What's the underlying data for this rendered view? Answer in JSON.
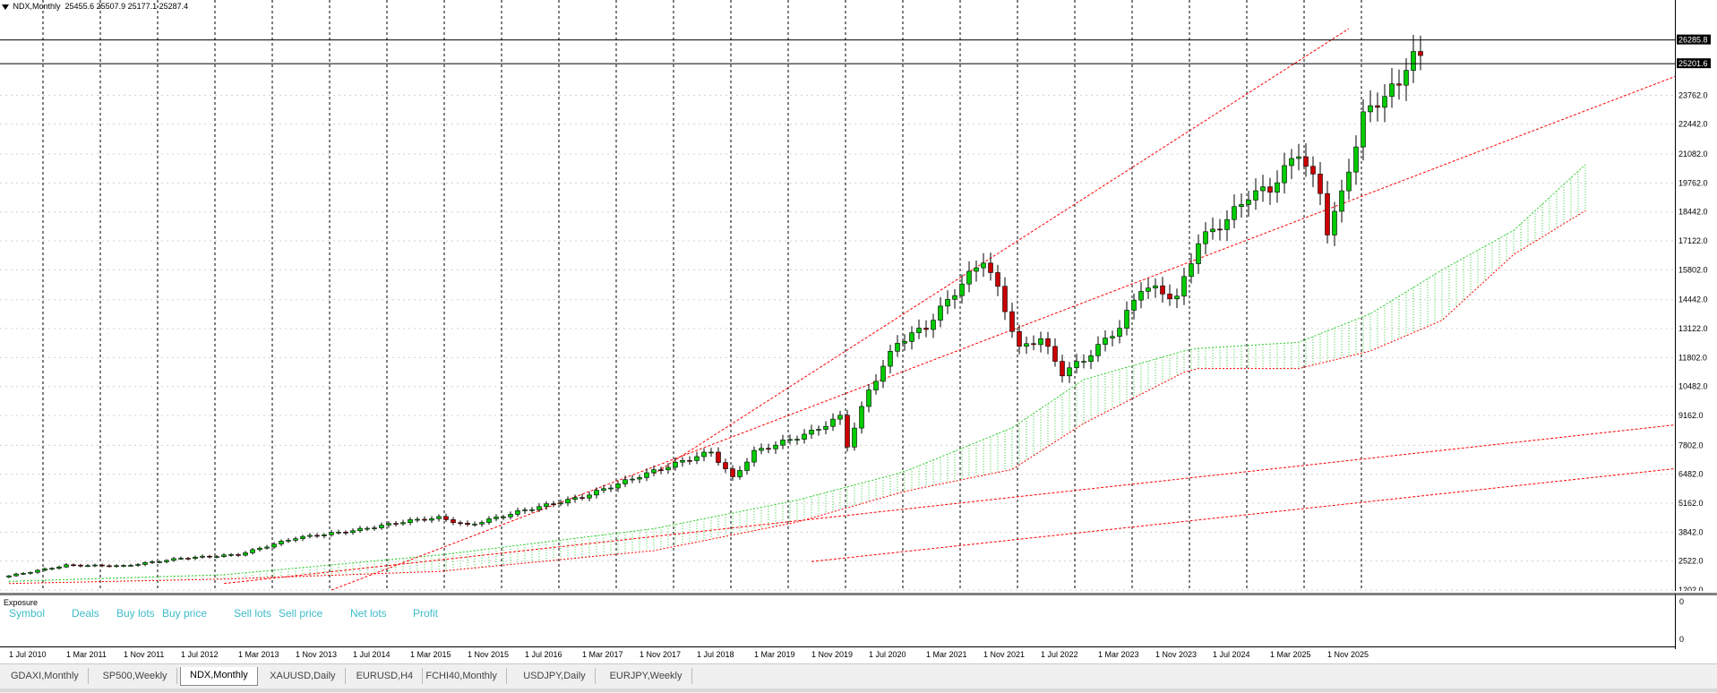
{
  "header": {
    "symbol": "NDX,Monthly",
    "ohlc": "25455.6 25507.9 25177.1 25287.4"
  },
  "price_labels": {
    "high_marker": "26285.8",
    "current_marker": "25201.6"
  },
  "chart_data": {
    "type": "candlestick",
    "title": "",
    "y_ticks": [
      1202.0,
      2522.0,
      3842.0,
      5162.0,
      6482.0,
      7802.0,
      9162.0,
      10482.0,
      11802.0,
      13122.0,
      14442.0,
      15802.0,
      17122.0,
      18442.0,
      19762.0,
      21082.0,
      22442.0,
      23762.0
    ],
    "y_tick_labels": [
      "1202.0",
      "2522.0",
      "3842.0",
      "5162.0",
      "6482.0",
      "7802.0",
      "9162.0",
      "10482.0",
      "11802.0",
      "13122.0",
      "14442.0",
      "15802.0",
      "17122.0",
      "18442.0",
      "19762.0",
      "21082.0",
      "22442.0",
      "23762.0"
    ],
    "ylim": [
      1202,
      26800
    ],
    "x_tick_labels": [
      "1 Jul 2010",
      "1 Mar 2011",
      "1 Nov 2011",
      "1 Jul 2012",
      "1 Mar 2013",
      "1 Nov 2013",
      "1 Jul 2014",
      "1 Mar 2015",
      "1 Nov 2015",
      "1 Jul 2016",
      "1 Mar 2017",
      "1 Nov 2017",
      "1 Jul 2018",
      "1 Mar 2019",
      "1 Nov 2019",
      "1 Jul 2020",
      "1 Mar 2021",
      "1 Nov 2021",
      "1 Jul 2022",
      "1 Mar 2023",
      "1 Nov 2023",
      "1 Jul 2024",
      "1 Mar 2025",
      "1 Nov 2025"
    ],
    "horizontal_levels": [
      26285.8,
      25201.6
    ],
    "close_anchors": [
      {
        "month": 0,
        "close": 1850
      },
      {
        "month": 8,
        "close": 2330
      },
      {
        "month": 16,
        "close": 2300
      },
      {
        "month": 24,
        "close": 2650
      },
      {
        "month": 32,
        "close": 2820
      },
      {
        "month": 40,
        "close": 3580
      },
      {
        "month": 48,
        "close": 3910
      },
      {
        "month": 56,
        "close": 4370
      },
      {
        "month": 60,
        "close": 4500
      },
      {
        "month": 64,
        "close": 4150
      },
      {
        "month": 72,
        "close": 4850
      },
      {
        "month": 80,
        "close": 5450
      },
      {
        "month": 88,
        "close": 6400
      },
      {
        "month": 96,
        "close": 7300
      },
      {
        "month": 98,
        "close": 7500
      },
      {
        "month": 101,
        "close": 6300
      },
      {
        "month": 104,
        "close": 7500
      },
      {
        "month": 112,
        "close": 8400
      },
      {
        "month": 116,
        "close": 9100
      },
      {
        "month": 117,
        "close": 7800
      },
      {
        "month": 120,
        "close": 10300
      },
      {
        "month": 124,
        "close": 12500
      },
      {
        "month": 128,
        "close": 13200
      },
      {
        "month": 132,
        "close": 14800
      },
      {
        "month": 136,
        "close": 16300
      },
      {
        "month": 138,
        "close": 14900
      },
      {
        "month": 141,
        "close": 12200
      },
      {
        "month": 144,
        "close": 12700
      },
      {
        "month": 147,
        "close": 11100
      },
      {
        "month": 150,
        "close": 11700
      },
      {
        "month": 152,
        "close": 12300
      },
      {
        "month": 155,
        "close": 13200
      },
      {
        "month": 158,
        "close": 15000
      },
      {
        "month": 160,
        "close": 14900
      },
      {
        "month": 163,
        "close": 14500
      },
      {
        "month": 166,
        "close": 17100
      },
      {
        "month": 170,
        "close": 18100
      },
      {
        "month": 173,
        "close": 19200
      },
      {
        "month": 176,
        "close": 19500
      },
      {
        "month": 180,
        "close": 21200
      },
      {
        "month": 183,
        "close": 19300
      },
      {
        "month": 184,
        "close": 17600
      },
      {
        "month": 186,
        "close": 19200
      },
      {
        "month": 189,
        "close": 22800
      },
      {
        "month": 192,
        "close": 23800
      },
      {
        "month": 194,
        "close": 24200
      },
      {
        "month": 195,
        "close": 25200
      },
      {
        "month": 196,
        "close": 25700
      },
      {
        "month": 197,
        "close": 25287
      }
    ],
    "cloud_top_anchors": [
      {
        "month": 0,
        "value": 1600
      },
      {
        "month": 30,
        "value": 1900
      },
      {
        "month": 60,
        "value": 2800
      },
      {
        "month": 90,
        "value": 4000
      },
      {
        "month": 110,
        "value": 5300
      },
      {
        "month": 125,
        "value": 6600
      },
      {
        "month": 140,
        "value": 8600
      },
      {
        "month": 150,
        "value": 10800
      },
      {
        "month": 165,
        "value": 12200
      },
      {
        "month": 180,
        "value": 12500
      },
      {
        "month": 190,
        "value": 13800
      },
      {
        "month": 200,
        "value": 15800
      },
      {
        "month": 210,
        "value": 17600
      },
      {
        "month": 220,
        "value": 20600
      }
    ],
    "cloud_bottom_anchors": [
      {
        "month": 0,
        "value": 1500
      },
      {
        "month": 30,
        "value": 1700
      },
      {
        "month": 60,
        "value": 2050
      },
      {
        "month": 90,
        "value": 3000
      },
      {
        "month": 110,
        "value": 4300
      },
      {
        "month": 125,
        "value": 5700
      },
      {
        "month": 140,
        "value": 6700
      },
      {
        "month": 150,
        "value": 8800
      },
      {
        "month": 165,
        "value": 11300
      },
      {
        "month": 180,
        "value": 11300
      },
      {
        "month": 190,
        "value": 12100
      },
      {
        "month": 200,
        "value": 13500
      },
      {
        "month": 210,
        "value": 16500
      },
      {
        "month": 220,
        "value": 18500
      }
    ],
    "trend_lines": [
      {
        "from": {
          "month": 90,
          "value": 6500
        },
        "to": {
          "month": 187,
          "value": 26800
        }
      },
      {
        "from": {
          "month": 45,
          "value": 1202
        },
        "to": {
          "month": 250,
          "value": 26800
        }
      },
      {
        "from": {
          "month": 30,
          "value": 1500
        },
        "to": {
          "month": 240,
          "value": 9000
        }
      },
      {
        "from": {
          "month": 112,
          "value": 2500
        },
        "to": {
          "month": 240,
          "value": 7000
        }
      }
    ],
    "colors": {
      "up": "#00cc00",
      "down": "#cc0000",
      "cloud": "#33cc33",
      "trend": "#ff0000"
    }
  },
  "exposure": {
    "title": "Exposure",
    "columns": [
      "Symbol",
      "Deals",
      "Buy lots",
      "Buy price",
      "Sell lots",
      "Sell price",
      "Net lots",
      "Profit"
    ],
    "axis_top": "0",
    "axis_bottom": "0"
  },
  "tabs": [
    {
      "label": "GDAXI,Monthly",
      "active": false
    },
    {
      "label": "SP500,Weekly",
      "active": false
    },
    {
      "label": "NDX,Monthly",
      "active": true
    },
    {
      "label": "XAUUSD,Daily",
      "active": false
    },
    {
      "label": "EURUSD,H4",
      "active": false
    },
    {
      "label": "FCHI40,Monthly",
      "active": false
    },
    {
      "label": "USDJPY,Daily",
      "active": false
    },
    {
      "label": "EURJPY,Weekly",
      "active": false
    }
  ]
}
